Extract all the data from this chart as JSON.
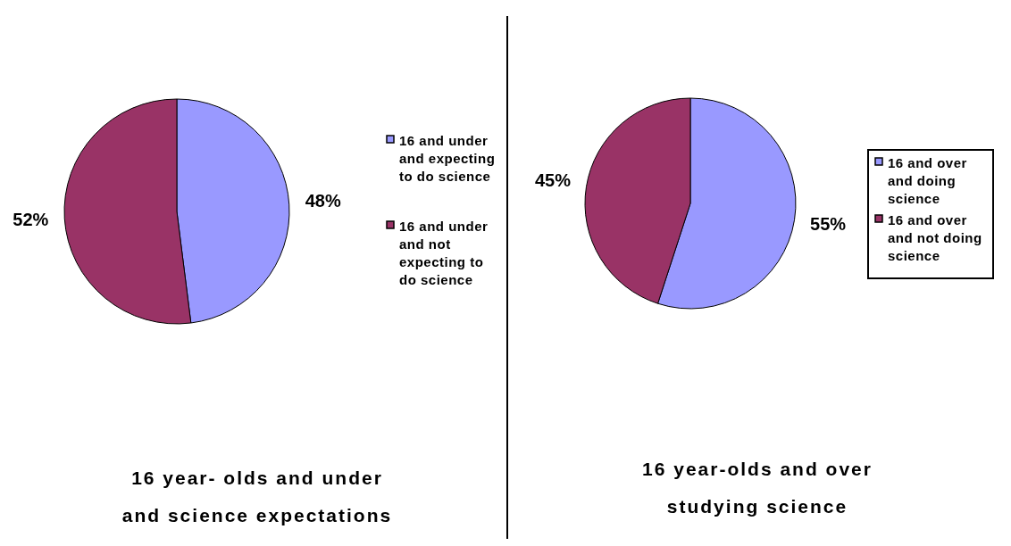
{
  "chart_data": [
    {
      "type": "pie",
      "title": "16 year- olds and under and science expectations",
      "categories": [
        "16 and under and expecting to do science",
        "16 and under and not expecting to do science"
      ],
      "values": [
        48,
        52
      ],
      "colors": [
        "#9999ff",
        "#993366"
      ],
      "value_labels": [
        "48%",
        "52%"
      ],
      "legend": "right"
    },
    {
      "type": "pie",
      "title": "16 year-olds and over studying science",
      "categories": [
        "16 and over and doing science",
        "16 and over and not doing science"
      ],
      "values": [
        55,
        45
      ],
      "colors": [
        "#9999ff",
        "#993366"
      ],
      "value_labels": [
        "55%",
        "45%"
      ],
      "legend": "right"
    }
  ]
}
